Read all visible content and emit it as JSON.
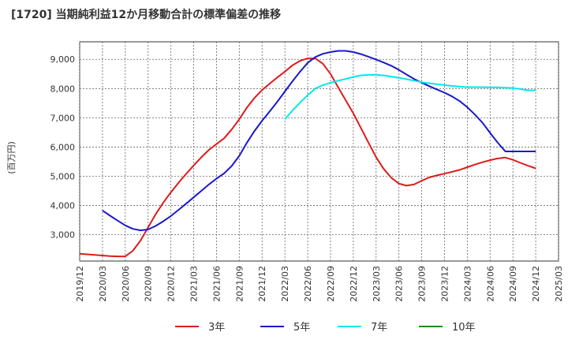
{
  "chart_data": {
    "type": "line",
    "title": "[1720]  当期純利益12か月移動合計の標準偏差の推移",
    "ylabel": "(百万円)",
    "xlabel": "",
    "ylim": [
      2100,
      9600
    ],
    "yticks": [
      3000,
      4000,
      5000,
      6000,
      7000,
      8000,
      9000
    ],
    "ytick_labels": [
      "3,000",
      "4,000",
      "5,000",
      "6,000",
      "7,000",
      "8,000",
      "9,000"
    ],
    "xlim": [
      "2019-12",
      "2025-03"
    ],
    "xtick_labels": [
      "2019/12",
      "2020/03",
      "2020/06",
      "2020/09",
      "2020/12",
      "2021/03",
      "2021/06",
      "2021/09",
      "2021/12",
      "2022/03",
      "2022/06",
      "2022/09",
      "2022/12",
      "2023/03",
      "2023/06",
      "2023/09",
      "2023/12",
      "2024/03",
      "2024/06",
      "2024/09",
      "2024/12",
      "2025/03"
    ],
    "grid": true,
    "legend_position": "bottom",
    "series": [
      {
        "name": "3年",
        "color": "#dd1c1c",
        "x": [
          "2019-12",
          "2020-01",
          "2020-02",
          "2020-03",
          "2020-04",
          "2020-05",
          "2020-06",
          "2020-07",
          "2020-08",
          "2020-09",
          "2020-10",
          "2020-11",
          "2020-12",
          "2021-01",
          "2021-02",
          "2021-03",
          "2021-04",
          "2021-05",
          "2021-06",
          "2021-07",
          "2021-08",
          "2021-09",
          "2021-10",
          "2021-11",
          "2021-12",
          "2022-01",
          "2022-02",
          "2022-03",
          "2022-04",
          "2022-05",
          "2022-06",
          "2022-07",
          "2022-08",
          "2022-09",
          "2022-10",
          "2022-11",
          "2022-12",
          "2023-01",
          "2023-02",
          "2023-03",
          "2023-04",
          "2023-05",
          "2023-06",
          "2023-07",
          "2023-08",
          "2023-09",
          "2023-10",
          "2023-11",
          "2023-12",
          "2024-01",
          "2024-02",
          "2024-03",
          "2024-04",
          "2024-05",
          "2024-06",
          "2024-07",
          "2024-08",
          "2024-09",
          "2024-10",
          "2024-11",
          "2024-12"
        ],
        "values": [
          2350,
          2330,
          2310,
          2290,
          2270,
          2260,
          2260,
          2450,
          2800,
          3250,
          3700,
          4100,
          4450,
          4780,
          5080,
          5370,
          5650,
          5900,
          6100,
          6300,
          6600,
          6950,
          7350,
          7680,
          7950,
          8170,
          8380,
          8580,
          8800,
          8950,
          9030,
          9030,
          8850,
          8500,
          8050,
          7600,
          7150,
          6650,
          6150,
          5650,
          5250,
          4950,
          4750,
          4680,
          4720,
          4850,
          4960,
          5030,
          5090,
          5150,
          5220,
          5310,
          5400,
          5480,
          5550,
          5610,
          5640,
          5560,
          5460,
          5360,
          5270
        ]
      },
      {
        "name": "5年",
        "color": "#1919c8",
        "x": [
          "2020-03",
          "2020-04",
          "2020-05",
          "2020-06",
          "2020-07",
          "2020-08",
          "2020-09",
          "2020-10",
          "2020-11",
          "2020-12",
          "2021-01",
          "2021-02",
          "2021-03",
          "2021-04",
          "2021-05",
          "2021-06",
          "2021-07",
          "2021-08",
          "2021-09",
          "2021-10",
          "2021-11",
          "2021-12",
          "2022-01",
          "2022-02",
          "2022-03",
          "2022-04",
          "2022-05",
          "2022-06",
          "2022-07",
          "2022-08",
          "2022-09",
          "2022-10",
          "2022-11",
          "2022-12",
          "2023-01",
          "2023-02",
          "2023-03",
          "2023-04",
          "2023-05",
          "2023-06",
          "2023-07",
          "2023-08",
          "2023-09",
          "2023-10",
          "2023-11",
          "2023-12",
          "2024-01",
          "2024-02",
          "2024-03",
          "2024-04",
          "2024-05",
          "2024-06",
          "2024-07",
          "2024-08",
          "2024-09",
          "2024-10",
          "2024-11",
          "2024-12"
        ],
        "values": [
          3830,
          3650,
          3480,
          3320,
          3200,
          3150,
          3180,
          3300,
          3460,
          3640,
          3850,
          4060,
          4280,
          4500,
          4720,
          4920,
          5100,
          5350,
          5700,
          6150,
          6550,
          6900,
          7220,
          7550,
          7900,
          8250,
          8580,
          8880,
          9080,
          9190,
          9250,
          9290,
          9290,
          9250,
          9180,
          9090,
          8990,
          8890,
          8780,
          8640,
          8480,
          8330,
          8200,
          8080,
          7970,
          7860,
          7730,
          7570,
          7360,
          7110,
          6830,
          6480,
          6150,
          5850,
          5850,
          5850,
          5850,
          5850
        ]
      },
      {
        "name": "7年",
        "color": "#00e8f0",
        "x": [
          "2022-03",
          "2022-04",
          "2022-05",
          "2022-06",
          "2022-07",
          "2022-08",
          "2022-09",
          "2022-10",
          "2022-11",
          "2022-12",
          "2023-01",
          "2023-02",
          "2023-03",
          "2023-04",
          "2023-05",
          "2023-06",
          "2023-07",
          "2023-08",
          "2023-09",
          "2023-10",
          "2023-11",
          "2023-12",
          "2024-01",
          "2024-02",
          "2024-03",
          "2024-04",
          "2024-05",
          "2024-06",
          "2024-07",
          "2024-08",
          "2024-09",
          "2024-10",
          "2024-11",
          "2024-12"
        ],
        "values": [
          6950,
          7250,
          7520,
          7770,
          8000,
          8120,
          8200,
          8270,
          8330,
          8400,
          8450,
          8470,
          8470,
          8450,
          8410,
          8370,
          8320,
          8270,
          8220,
          8180,
          8150,
          8120,
          8090,
          8070,
          8050,
          8050,
          8050,
          8040,
          8040,
          8030,
          8020,
          7980,
          7940,
          7940
        ]
      },
      {
        "name": "10年",
        "color": "#1a8c1a",
        "x": [],
        "values": []
      }
    ]
  }
}
